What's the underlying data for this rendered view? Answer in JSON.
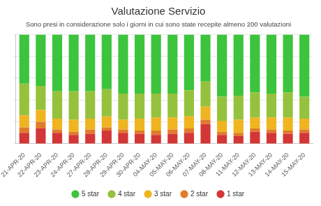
{
  "chart_data": {
    "type": "bar",
    "title": "Valutazione Servizio",
    "subtitle": "Sono presi in considerazione solo i giorni in cui sono state recepite almeno 200 valutazioni",
    "categories": [
      "21-APR-20",
      "22-APR-20",
      "23-APR-20",
      "24-APR-20",
      "27-APR-20",
      "28-APR-20",
      "29-APR-20",
      "30-APR-20",
      "04-MAY-20",
      "05-MAY-20",
      "06-MAY-20",
      "07-MAY-20",
      "08-MAY-20",
      "11-MAY-20",
      "12-MAY-20",
      "13-MAY-20",
      "14-MAY-20",
      "15-MAY-20"
    ],
    "series": [
      {
        "name": "5 star",
        "color": "#3cc43c",
        "values": [
          45,
          47,
          52,
          52,
          52,
          50,
          54,
          54,
          54,
          54,
          51,
          43,
          57,
          56,
          53,
          54,
          53,
          57
        ]
      },
      {
        "name": "4 star",
        "color": "#95c23d",
        "values": [
          29,
          22,
          25,
          26,
          25,
          25,
          24,
          23,
          22,
          22,
          24,
          23,
          22,
          22,
          23,
          22,
          23,
          20
        ]
      },
      {
        "name": "3 star",
        "color": "#efb520",
        "values": [
          11,
          11,
          10,
          11,
          10,
          10,
          9,
          11,
          12,
          11,
          11,
          12,
          10,
          12,
          10,
          11,
          12,
          10
        ]
      },
      {
        "name": "2 star",
        "color": "#e07b2c",
        "values": [
          5,
          6,
          3,
          3,
          4,
          3,
          3,
          3,
          4,
          4,
          4,
          4,
          3,
          3,
          3,
          3,
          3,
          3
        ]
      },
      {
        "name": "1 star",
        "color": "#d33636",
        "values": [
          10,
          14,
          10,
          8,
          9,
          12,
          10,
          9,
          8,
          9,
          10,
          18,
          8,
          7,
          11,
          10,
          9,
          10
        ]
      }
    ],
    "stacked": true,
    "ylim": [
      0,
      100
    ],
    "yticks": [
      0,
      20,
      40,
      60,
      80,
      100
    ],
    "grid": true,
    "legend": "bottom",
    "tick_labels": "x"
  }
}
